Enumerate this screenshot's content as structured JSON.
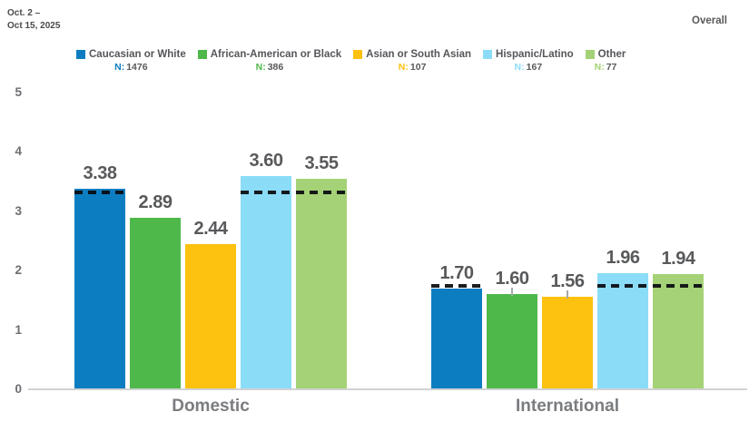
{
  "header": {
    "date_line1": "Oct. 2 –",
    "date_line2": "Oct 15, 2025",
    "overall_label": "Overall"
  },
  "legend": [
    {
      "label": "Caucasian or White",
      "n_prefix": "N:",
      "n_value": "1476",
      "color": "#0d7dc2"
    },
    {
      "label": "African-American or Black",
      "n_prefix": "N:",
      "n_value": "386",
      "color": "#4eb84b"
    },
    {
      "label": "Asian or South Asian",
      "n_prefix": "N:",
      "n_value": "107",
      "color": "#fdc110"
    },
    {
      "label": "Hispanic/Latino",
      "n_prefix": "N:",
      "n_value": "167",
      "color": "#8bdcf7"
    },
    {
      "label": "Other",
      "n_prefix": "N:",
      "n_value": "77",
      "color": "#a5d276"
    }
  ],
  "chart_data": {
    "type": "bar",
    "title": "",
    "categories": [
      "Domestic",
      "International"
    ],
    "series": [
      {
        "name": "Caucasian or White",
        "n": 1476,
        "color": "#0d7dc2",
        "values": [
          3.38,
          1.7
        ],
        "labels": [
          "3.38",
          "1.70"
        ]
      },
      {
        "name": "African-American or Black",
        "n": 386,
        "color": "#4eb84b",
        "values": [
          2.89,
          1.6
        ],
        "labels": [
          "2.89",
          "1.60"
        ]
      },
      {
        "name": "Asian or South Asian",
        "n": 107,
        "color": "#fdc110",
        "values": [
          2.44,
          1.56
        ],
        "labels": [
          "2.44",
          "1.56"
        ]
      },
      {
        "name": "Hispanic/Latino",
        "n": 167,
        "color": "#8bdcf7",
        "values": [
          3.6,
          1.96
        ],
        "labels": [
          "3.60",
          "1.96"
        ]
      },
      {
        "name": "Other",
        "n": 77,
        "color": "#a5d276",
        "values": [
          3.55,
          1.94
        ],
        "labels": [
          "3.55",
          "1.94"
        ]
      }
    ],
    "overall_dashed_line": [
      3.32,
      1.75
    ],
    "whisker_flags": [
      [
        0,
        0,
        0,
        0,
        0
      ],
      [
        0,
        1,
        1,
        0,
        0
      ]
    ],
    "yticks": [
      5,
      4,
      3,
      2,
      1,
      0
    ],
    "ylim": [
      0,
      5
    ],
    "grid": false,
    "legend_position": "top"
  }
}
